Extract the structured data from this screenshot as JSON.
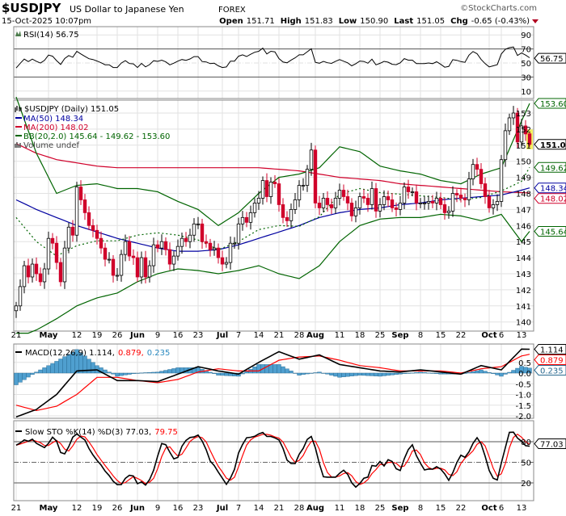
{
  "header": {
    "symbol": "$USDJPY",
    "name": "US Dollar to Japanese Yen",
    "exchange": "FOREX",
    "datetime": "15-Oct-2025 10:07pm",
    "brand": "©StockCharts.com",
    "open_label": "Open",
    "open": "151.71",
    "high_label": "High",
    "high": "151.83",
    "low_label": "Low",
    "low": "150.90",
    "last_label": "Last",
    "last": "151.05",
    "chg_label": "Chg",
    "chg": "-0.65 (-0.43%)"
  },
  "colors": {
    "up": "#000000",
    "down": "#d0002a",
    "ma50": "#0000a0",
    "ma200": "#d0002a",
    "bb": "#006400",
    "macd": "#000000",
    "signal": "#ff0000",
    "hist": "#4f9fcf",
    "stok": "#000000",
    "stod": "#ff0000"
  },
  "chart_data": {
    "type": "candlestick",
    "x_labels": [
      {
        "label": "21",
        "idx": 0
      },
      {
        "label": "May",
        "idx": 8
      },
      {
        "label": "12",
        "idx": 15
      },
      {
        "label": "19",
        "idx": 20
      },
      {
        "label": "26",
        "idx": 25
      },
      {
        "label": "Jun",
        "idx": 30
      },
      {
        "label": "9",
        "idx": 35
      },
      {
        "label": "16",
        "idx": 40
      },
      {
        "label": "23",
        "idx": 45
      },
      {
        "label": "Jul",
        "idx": 51
      },
      {
        "label": "7",
        "idx": 55
      },
      {
        "label": "14",
        "idx": 60
      },
      {
        "label": "21",
        "idx": 65
      },
      {
        "label": "28",
        "idx": 70
      },
      {
        "label": "Aug",
        "idx": 74
      },
      {
        "label": "11",
        "idx": 80
      },
      {
        "label": "18",
        "idx": 85
      },
      {
        "label": "25",
        "idx": 90
      },
      {
        "label": "Sep",
        "idx": 95
      },
      {
        "label": "8",
        "idx": 100
      },
      {
        "label": "15",
        "idx": 105
      },
      {
        "label": "22",
        "idx": 110
      },
      {
        "label": "Oct",
        "idx": 117
      },
      {
        "label": "6",
        "idx": 120
      },
      {
        "label": "13",
        "idx": 125
      }
    ],
    "closes": [
      141.0,
      142.2,
      143.5,
      142.8,
      143.6,
      143.0,
      142.5,
      143.3,
      145.2,
      144.9,
      143.7,
      142.5,
      144.6,
      145.9,
      145.4,
      148.4,
      147.6,
      146.8,
      146.0,
      145.7,
      145.2,
      144.6,
      143.9,
      143.9,
      142.9,
      142.9,
      144.2,
      145.0,
      144.1,
      144.0,
      142.8,
      144.0,
      142.8,
      143.5,
      144.8,
      144.6,
      145.0,
      144.5,
      143.6,
      144.1,
      144.7,
      145.2,
      145.0,
      145.4,
      146.1,
      146.1,
      145.0,
      144.9,
      144.5,
      144.6,
      144.0,
      143.6,
      143.7,
      144.9,
      144.9,
      146.1,
      146.5,
      146.2,
      146.8,
      147.4,
      147.7,
      148.8,
      147.8,
      148.7,
      148.6,
      147.3,
      146.5,
      146.3,
      147.0,
      147.6,
      148.5,
      148.5,
      149.5,
      150.7,
      147.4,
      147.1,
      147.7,
      147.3,
      147.1,
      147.7,
      148.2,
      147.8,
      147.4,
      146.6,
      147.1,
      147.8,
      147.7,
      147.3,
      148.3,
      146.9,
      147.3,
      147.8,
      147.6,
      147.1,
      147.0,
      147.4,
      148.4,
      148.1,
      148.1,
      147.4,
      147.4,
      147.4,
      147.5,
      147.4,
      147.7,
      147.3,
      146.8,
      146.9,
      148.0,
      147.9,
      147.7,
      147.6,
      148.9,
      149.8,
      149.5,
      148.6,
      147.8,
      147.1,
      147.3,
      147.5,
      150.1,
      151.9,
      152.7,
      153.0,
      151.2,
      152.2,
      151.7,
      151.05
    ],
    "sample_idx": [
      0,
      5,
      10,
      15,
      20,
      25,
      30,
      35,
      40,
      45,
      50,
      55,
      60,
      65,
      70,
      75,
      80,
      85,
      90,
      95,
      100,
      105,
      110,
      115,
      120,
      125,
      127
    ],
    "ma50": [
      147.6,
      147.0,
      146.5,
      146.0,
      145.6,
      145.2,
      144.9,
      144.6,
      144.4,
      144.4,
      144.5,
      144.8,
      145.2,
      145.6,
      146.0,
      146.5,
      146.8,
      147.0,
      147.1,
      147.3,
      147.4,
      147.6,
      147.7,
      147.8,
      147.9,
      148.2,
      148.34
    ],
    "ma200": [
      151.1,
      150.5,
      150.1,
      149.9,
      149.7,
      149.6,
      149.6,
      149.6,
      149.6,
      149.6,
      149.6,
      149.6,
      149.6,
      149.5,
      149.4,
      149.2,
      149.0,
      148.9,
      148.8,
      148.6,
      148.5,
      148.4,
      148.3,
      148.2,
      148.1,
      148.05,
      148.02
    ],
    "bb_upper": [
      154.0,
      150.5,
      148.0,
      148.5,
      148.6,
      148.3,
      148.3,
      148.1,
      147.5,
      147.0,
      146.0,
      146.8,
      148.0,
      149.0,
      149.2,
      149.6,
      150.9,
      150.6,
      149.7,
      149.4,
      149.2,
      148.8,
      148.6,
      149.2,
      149.6,
      152.5,
      153.6
    ],
    "bb_lower": [
      139.0,
      139.5,
      140.2,
      141.0,
      141.5,
      141.8,
      142.5,
      143.0,
      143.3,
      143.2,
      143.0,
      143.2,
      143.5,
      143.0,
      142.7,
      143.5,
      145.0,
      146.0,
      146.4,
      146.5,
      146.5,
      146.7,
      146.6,
      146.3,
      146.7,
      145.0,
      145.64
    ],
    "macd": [
      -2.05,
      -1.7,
      -1.0,
      0.1,
      0.15,
      -0.35,
      -0.35,
      -0.4,
      -0.05,
      0.3,
      0.1,
      -0.05,
      0.5,
      1.0,
      0.65,
      0.85,
      0.4,
      0.25,
      0.1,
      0.05,
      0.15,
      0.05,
      -0.05,
      0.35,
      0.15,
      1.12,
      1.114
    ],
    "signal": [
      -1.5,
      -1.75,
      -1.55,
      -1.0,
      -0.2,
      -0.2,
      -0.35,
      -0.45,
      -0.3,
      0.05,
      0.2,
      0.1,
      0.1,
      0.6,
      0.75,
      0.8,
      0.6,
      0.35,
      0.25,
      0.1,
      0.1,
      0.1,
      0.0,
      0.2,
      0.3,
      0.8,
      0.879
    ],
    "price_ticks": [
      "153",
      "152",
      "151",
      "150",
      "149",
      "148",
      "147",
      "146",
      "145",
      "144",
      "143",
      "142",
      "141",
      "140"
    ],
    "price_range": [
      139.5,
      153.8
    ],
    "rsi_ticks": [
      "90",
      "70",
      "50",
      "30",
      "10"
    ],
    "macd_ticks": [
      "0.5",
      "0.0",
      "-0.5",
      "-1.0",
      "-1.5",
      "-2.0"
    ],
    "sto_ticks": [
      "80",
      "50",
      "20"
    ]
  },
  "legends": {
    "rsi": "RSI(14) 56.75",
    "price": "$USDJPY (Daily) 151.05",
    "ma50": "MA(50) 148.34",
    "ma200": "MA(200) 148.02",
    "bb": "BB(20,2.0) 145.64 - 149.62 - 153.60",
    "volume": "Volume undef",
    "macd_a": "MACD(12,26,9) 1.114,",
    "macd_b": "0.879,",
    "macd_c": "0.235",
    "sto_a": "Slow STO %K(14) %D(3) 77.03,",
    "sto_b": "79.75"
  },
  "tags": {
    "bb_upper": "153.60",
    "last": "151.05",
    "bb_mid": "149.62",
    "ma50": "148.34",
    "ma200": "148.02",
    "bb_lower": "145.64",
    "rsi": "56.75",
    "macd": "1.114",
    "signal": "0.879",
    "hist": "0.235",
    "stok": "77.03"
  }
}
